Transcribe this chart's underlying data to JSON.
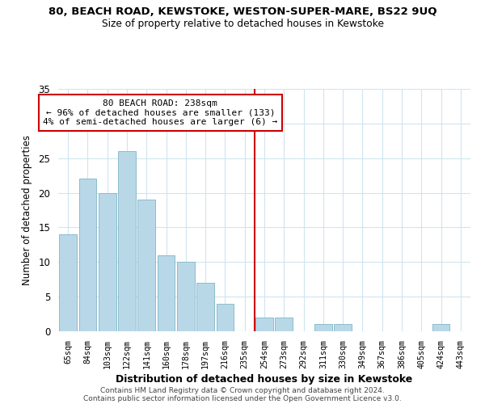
{
  "title1": "80, BEACH ROAD, KEWSTOKE, WESTON-SUPER-MARE, BS22 9UQ",
  "title2": "Size of property relative to detached houses in Kewstoke",
  "xlabel": "Distribution of detached houses by size in Kewstoke",
  "ylabel": "Number of detached properties",
  "bar_labels": [
    "65sqm",
    "84sqm",
    "103sqm",
    "122sqm",
    "141sqm",
    "160sqm",
    "178sqm",
    "197sqm",
    "216sqm",
    "235sqm",
    "254sqm",
    "273sqm",
    "292sqm",
    "311sqm",
    "330sqm",
    "349sqm",
    "367sqm",
    "386sqm",
    "405sqm",
    "424sqm",
    "443sqm"
  ],
  "bar_values": [
    14,
    22,
    20,
    26,
    19,
    11,
    10,
    7,
    4,
    0,
    2,
    2,
    0,
    1,
    1,
    0,
    0,
    0,
    0,
    1,
    0
  ],
  "bar_color": "#b8d8e8",
  "bar_edge_color": "#8bbccc",
  "vline_color": "#cc0000",
  "annotation_title": "80 BEACH ROAD: 238sqm",
  "annotation_line1": "← 96% of detached houses are smaller (133)",
  "annotation_line2": "4% of semi-detached houses are larger (6) →",
  "annotation_box_facecolor": "#ffffff",
  "annotation_box_edgecolor": "#cc0000",
  "ylim": [
    0,
    35
  ],
  "yticks": [
    0,
    5,
    10,
    15,
    20,
    25,
    30,
    35
  ],
  "grid_color": "#d0e4f0",
  "footer1": "Contains HM Land Registry data © Crown copyright and database right 2024.",
  "footer2": "Contains public sector information licensed under the Open Government Licence v3.0."
}
